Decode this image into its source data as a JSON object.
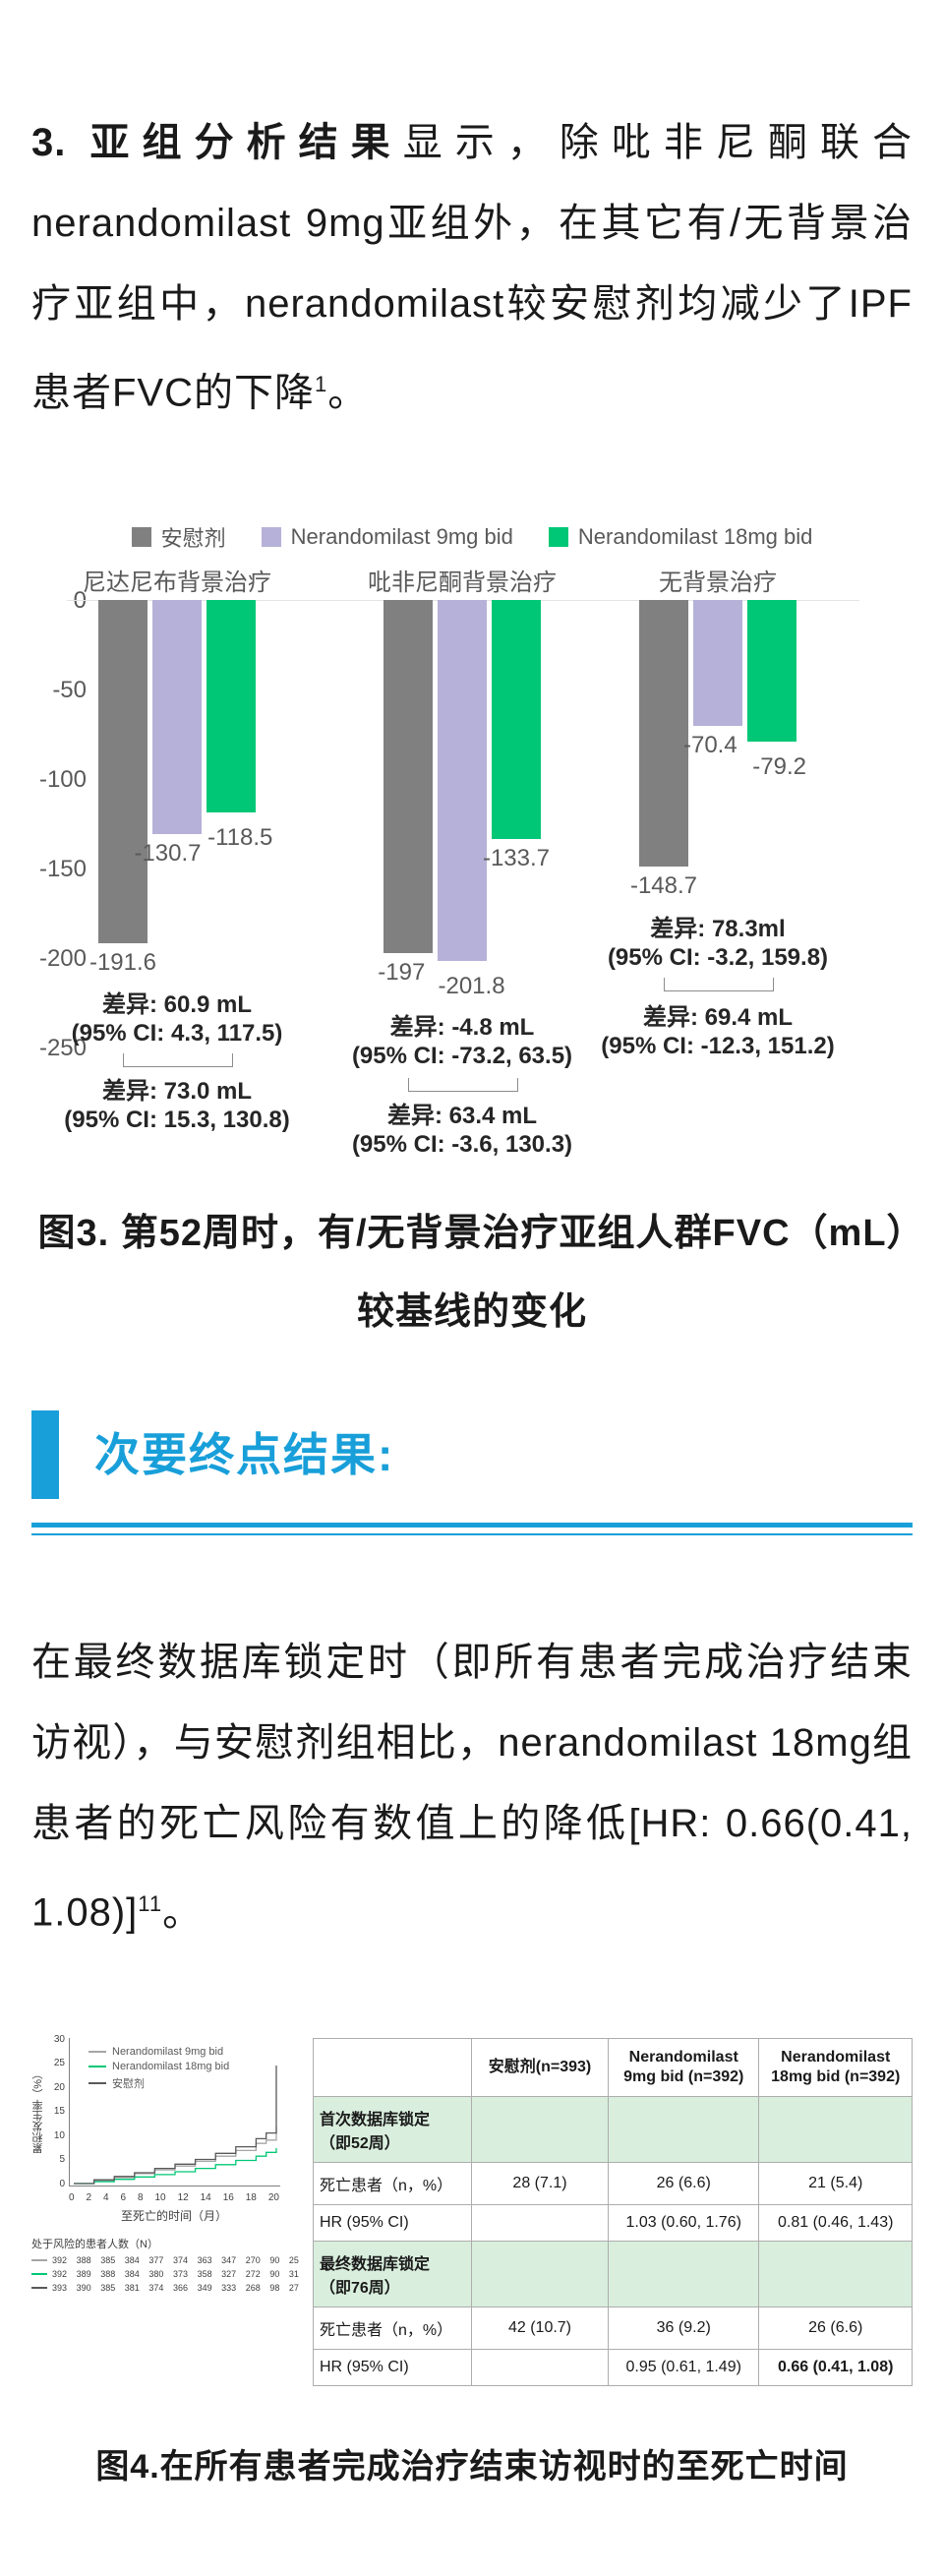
{
  "intro": {
    "bold": "3. 亚组分析结果",
    "body": "显示，除吡非尼酮联合nerandomilast 9mg亚组外，在其它有/无背景治疗亚组中，nerandomilast较安慰剂均减少了IPF患者FVC的下降",
    "sup": "1",
    "tail": "。"
  },
  "chart_data": [
    {
      "type": "bar",
      "title": "第52周时，有/无背景治疗亚组人群FVC（mL）较基线的变化",
      "ylim": [
        -250,
        0
      ],
      "yticks": [
        "0",
        "-50",
        "-100",
        "-150",
        "-200",
        "-250"
      ],
      "legend": [
        {
          "label": "安慰剂",
          "color": "#808080"
        },
        {
          "label": "Nerandomilast 9mg bid",
          "color": "#b5b1d8"
        },
        {
          "label": "Nerandomilast 18mg bid",
          "color": "#00c776"
        }
      ],
      "groups": [
        {
          "title": "尼达尼布背景治疗",
          "bars": [
            {
              "name": "安慰剂",
              "label": "-191.6",
              "value": -191.6
            },
            {
              "name": "Nerandomilast 9mg bid",
              "label": "-130.7",
              "value": -130.7
            },
            {
              "name": "Nerandomilast 18mg bid",
              "label": "-118.5",
              "value": -118.5
            }
          ],
          "comparisons": [
            {
              "diff": "差异: 60.9 mL",
              "ci": "(95% CI: 4.3, 117.5)"
            },
            {
              "diff": "差异: 73.0 mL",
              "ci": "(95% CI: 15.3, 130.8)"
            }
          ]
        },
        {
          "title": "吡非尼酮背景治疗",
          "bars": [
            {
              "name": "安慰剂",
              "label": "-197",
              "value": -197
            },
            {
              "name": "Nerandomilast 9mg bid",
              "label": "-201.8",
              "value": -201.8
            },
            {
              "name": "Nerandomilast 18mg bid",
              "label": "-133.7",
              "value": -133.7
            }
          ],
          "comparisons": [
            {
              "diff": "差异: -4.8 mL",
              "ci": "(95% CI: -73.2, 63.5)"
            },
            {
              "diff": "差异: 63.4 mL",
              "ci": "(95% CI: -3.6, 130.3)"
            }
          ]
        },
        {
          "title": "无背景治疗",
          "bars": [
            {
              "name": "安慰剂",
              "label": "-148.7",
              "value": -148.7
            },
            {
              "name": "Nerandomilast 9mg bid",
              "label": "-70.4",
              "value": -70.4
            },
            {
              "name": "Nerandomilast 18mg bid",
              "label": "-79.2",
              "value": -79.2
            }
          ],
          "comparisons": [
            {
              "diff": "差异: 78.3ml",
              "ci": "(95% CI: -3.2, 159.8)"
            },
            {
              "diff": "差异: 69.4 mL",
              "ci": "(95% CI: -12.3, 151.2)"
            }
          ]
        }
      ]
    },
    {
      "type": "line",
      "ylabel": "累积发生率（%）",
      "xlabel": "至死亡的时间（月）",
      "ylim": [
        0,
        30
      ],
      "yticks": [
        "0",
        "5",
        "10",
        "15",
        "20",
        "25",
        "30"
      ],
      "xticks": [
        "0",
        "2",
        "4",
        "6",
        "8",
        "10",
        "12",
        "14",
        "16",
        "18",
        "20"
      ],
      "series": [
        {
          "name": "Nerandomilast 9mg bid",
          "color": "#a6a6a6",
          "x": [
            0,
            2,
            4,
            6,
            8,
            10,
            12,
            14,
            16,
            18,
            19,
            20
          ],
          "y": [
            0,
            0.6,
            1.3,
            2.1,
            2.9,
            3.7,
            4.7,
            5.8,
            7.0,
            8.5,
            9.2,
            12.0
          ]
        },
        {
          "name": "Nerandomilast 18mg bid",
          "color": "#00c776",
          "x": [
            0,
            2,
            4,
            6,
            8,
            10,
            12,
            14,
            16,
            18,
            19,
            20
          ],
          "y": [
            0,
            0.4,
            0.9,
            1.4,
            1.9,
            2.5,
            3.2,
            4.0,
            4.9,
            5.8,
            6.6,
            7.5
          ]
        },
        {
          "name": "安慰剂",
          "color": "#595959",
          "x": [
            0,
            2,
            4,
            6,
            8,
            10,
            12,
            14,
            16,
            18,
            19,
            20
          ],
          "y": [
            0,
            0.8,
            1.5,
            2.3,
            3.2,
            4.1,
            5.1,
            6.4,
            7.8,
            9.5,
            10.7,
            25.0
          ]
        }
      ],
      "at_risk": {
        "label": "处于风险的患者人数（N）",
        "rows": [
          {
            "name": "Nerandomilast 9mg bid",
            "color": "#a6a6a6",
            "values": [
              "392",
              "388",
              "385",
              "384",
              "377",
              "374",
              "363",
              "347",
              "270",
              "90",
              "25"
            ]
          },
          {
            "name": "Nerandomilast 18mg bid",
            "color": "#00c776",
            "values": [
              "392",
              "389",
              "388",
              "384",
              "380",
              "373",
              "358",
              "327",
              "272",
              "90",
              "31"
            ]
          },
          {
            "name": "安慰剂",
            "color": "#595959",
            "values": [
              "393",
              "390",
              "385",
              "381",
              "374",
              "366",
              "349",
              "333",
              "268",
              "98",
              "27"
            ]
          }
        ]
      }
    }
  ],
  "fig3_caption": "图3. 第52周时，有/无背景治疗亚组人群FVC（mL）较基线的变化",
  "secondary": {
    "heading": "次要终点结果:",
    "accent_color": "#189fd9",
    "body": "在最终数据库锁定时（即所有患者完成治疗结束访视），与安慰剂组相比，nerandomilast 18mg组患者的死亡风险有数值上的降低[HR: 0.66(0.41, 1.08)]",
    "sup": "11",
    "tail": "。"
  },
  "table": {
    "headers": [
      "",
      "安慰剂(n=393)",
      "Nerandomilast 9mg bid (n=392)",
      "Nerandomilast 18mg bid (n=392)"
    ],
    "rows": [
      {
        "label": "首次数据库锁定 （即52周）",
        "cells": [
          "",
          "",
          ""
        ],
        "section": true
      },
      {
        "label": "死亡患者（n，%）",
        "cells": [
          "28 (7.1)",
          "26 (6.6)",
          "21 (5.4)"
        ],
        "section": false
      },
      {
        "label": "HR (95% CI)",
        "cells": [
          "",
          "1.03 (0.60, 1.76)",
          "0.81 (0.46, 1.43)"
        ],
        "section": false
      },
      {
        "label": "最终数据库锁定 （即76周）",
        "cells": [
          "",
          "",
          ""
        ],
        "section": true
      },
      {
        "label": "死亡患者（n，%）",
        "cells": [
          "42 (10.7)",
          "36 (9.2)",
          "26 (6.6)"
        ],
        "section": false
      },
      {
        "label": "HR (95% CI)",
        "cells": [
          "",
          "0.95 (0.61, 1.49)",
          "0.66 (0.41, 1.08)"
        ],
        "section": false
      }
    ]
  },
  "fig4_caption": "图4.在所有患者完成治疗结束访视时的至死亡时间"
}
